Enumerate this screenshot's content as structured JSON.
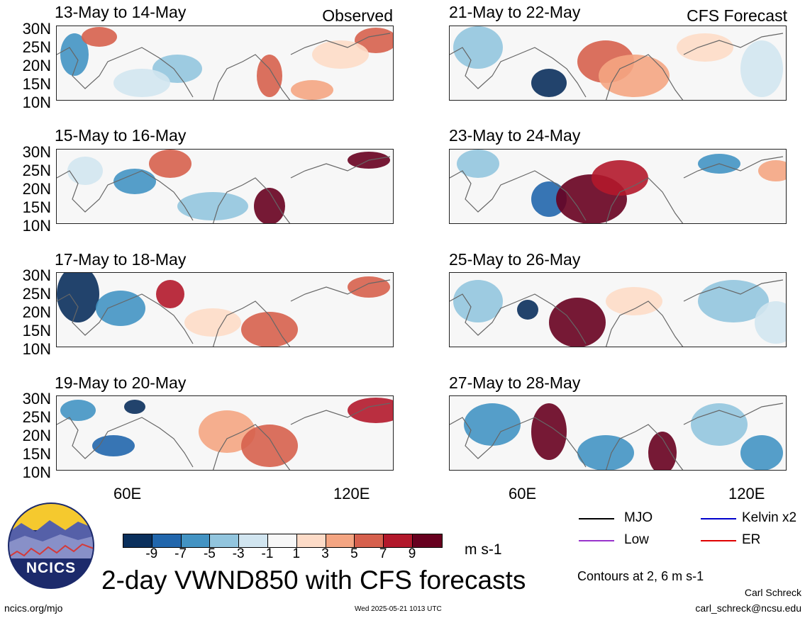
{
  "panels": [
    {
      "title": "13-May to 14-May",
      "tag": "Observed"
    },
    {
      "title": "21-May to 22-May",
      "tag": "CFS Forecast"
    },
    {
      "title": "15-May to 16-May",
      "tag": ""
    },
    {
      "title": "23-May to 24-May",
      "tag": ""
    },
    {
      "title": "17-May to 18-May",
      "tag": ""
    },
    {
      "title": "25-May to 26-May",
      "tag": ""
    },
    {
      "title": "19-May to 20-May",
      "tag": ""
    },
    {
      "title": "27-May to 28-May",
      "tag": ""
    }
  ],
  "lat_labels": [
    "30N",
    "25N",
    "20N",
    "15N",
    "10N"
  ],
  "lon_labels": [
    "60E",
    "120E"
  ],
  "colorbar": {
    "labels": [
      "-9",
      "-7",
      "-5",
      "-3",
      "-1",
      "1",
      "3",
      "5",
      "7",
      "9"
    ],
    "colors": [
      "#0a2f5c",
      "#2166ac",
      "#4393c3",
      "#92c5de",
      "#d1e5f0",
      "#f7f7f7",
      "#fddbc7",
      "#f4a582",
      "#d6604d",
      "#b2182b",
      "#67001f"
    ],
    "units": "m s-1"
  },
  "legend": {
    "items": [
      {
        "label": "MJO",
        "color": "#000000"
      },
      {
        "label": "Kelvin x2",
        "color": "#0000cc"
      },
      {
        "label": "Low",
        "color": "#9933cc"
      },
      {
        "label": "ER",
        "color": "#e00000"
      }
    ],
    "contours_note": "Contours at 2, 6 m s-1"
  },
  "logo_text": "NCICS",
  "main_title": "2-day VWND850 with CFS forecasts",
  "footer": {
    "website": "ncics.org/mjo",
    "timestamp": "Wed 2025-05-21 1013 UTC",
    "author": "Carl Schreck",
    "email": "carl_schreck@ncsu.edu"
  }
}
